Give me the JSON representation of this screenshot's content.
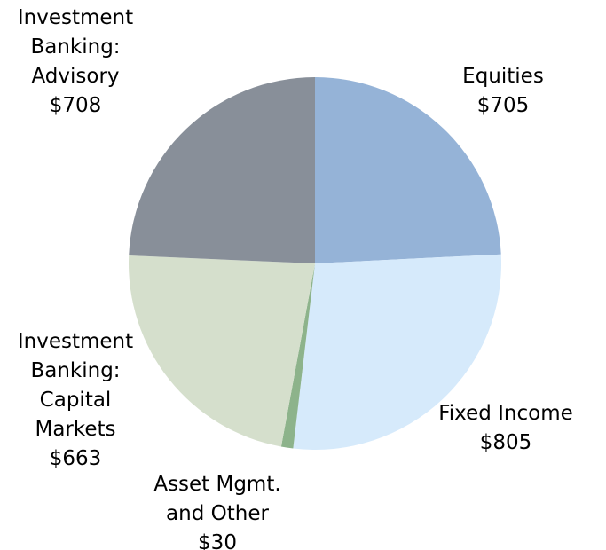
{
  "chart_data": {
    "type": "pie",
    "categories": [
      "Equities",
      "Fixed Income",
      "Asset Mgmt. and Other",
      "Investment Banking: Capital Markets",
      "Investment Banking: Advisory"
    ],
    "values": [
      705,
      805,
      30,
      663,
      708
    ],
    "value_labels": [
      "$705",
      "$805",
      "$30",
      "$663",
      "$708"
    ],
    "colors": [
      "#95b3d7",
      "#d6eafb",
      "#8db38b",
      "#d5dfcc",
      "#888f99"
    ]
  }
}
